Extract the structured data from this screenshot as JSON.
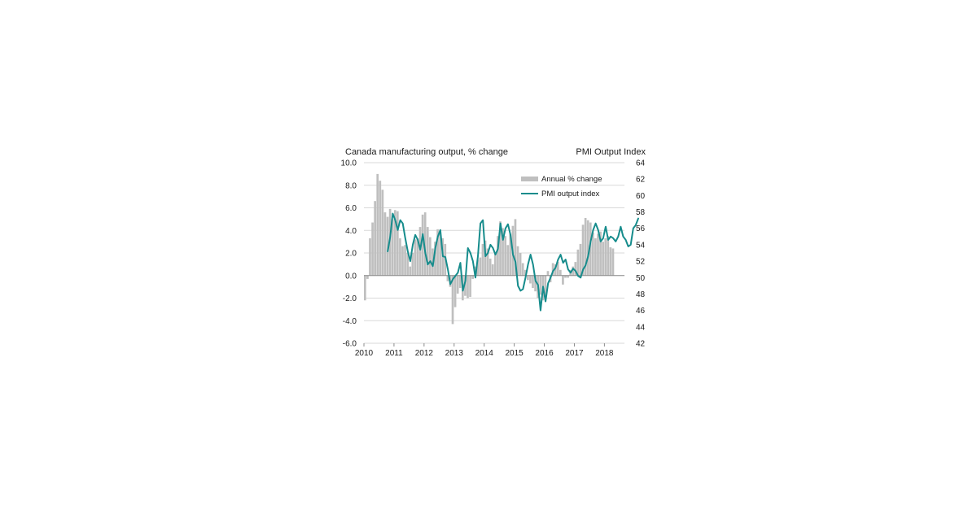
{
  "chart_data": {
    "type": "bar",
    "left_axis_title": "Canada manufacturing output, % change",
    "right_axis_title": "PMI Output Index",
    "left_ticks": [
      "10.0",
      "8.0",
      "6.0",
      "4.0",
      "2.0",
      "0.0",
      "-2.0",
      "-4.0",
      "-6.0"
    ],
    "right_ticks": [
      "64",
      "62",
      "60",
      "58",
      "56",
      "54",
      "52",
      "50",
      "48",
      "46",
      "44",
      "42"
    ],
    "x_ticks": [
      "2010",
      "2011",
      "2012",
      "2013",
      "2014",
      "2015",
      "2016",
      "2017",
      "2018"
    ],
    "ylim_left": [
      -6,
      10
    ],
    "ylim_right": [
      42,
      64
    ],
    "grid": true,
    "legend": {
      "placement": "top-right",
      "bar_label": "Annual % change",
      "line_label": "PMI output index"
    },
    "colors": {
      "bars": "#bfbfbf",
      "line": "#168c8c",
      "grid": "#d9d9d9"
    },
    "series": [
      {
        "name": "Annual % change",
        "kind": "bar",
        "start": "2010-01",
        "values": [
          -2.2,
          -0.3,
          3.3,
          4.7,
          6.6,
          9.0,
          8.4,
          7.6,
          5.6,
          5.2,
          5.9,
          5.0,
          5.8,
          5.7,
          3.3,
          2.6,
          2.7,
          2.0,
          0.8,
          2.0,
          3.2,
          3.3,
          4.3,
          5.4,
          5.6,
          4.3,
          3.4,
          2.4,
          3.0,
          4.1,
          3.9,
          3.3,
          2.8,
          -0.5,
          -1.0,
          -4.3,
          -2.8,
          -1.6,
          -1.1,
          -2.2,
          -1.8,
          -2.0,
          -1.9,
          -0.3,
          0.8,
          1.4,
          1.6,
          2.8,
          3.1,
          2.4,
          1.5,
          1.0,
          2.0,
          3.5,
          4.8,
          4.2,
          3.5,
          2.7,
          3.7,
          4.4,
          5.0,
          2.6,
          2.0,
          1.1,
          0.5,
          -0.4,
          -0.7,
          -1.1,
          -1.4,
          -2.0,
          -1.7,
          -2.2,
          -1.8,
          0.4,
          -0.6,
          1.1,
          1.0,
          1.2,
          0.5,
          -0.8,
          -0.2,
          -0.2,
          0.5,
          0.8,
          1.2,
          2.3,
          2.8,
          4.5,
          5.1,
          4.9,
          4.7,
          3.8,
          3.3,
          3.7,
          3.9,
          3.0,
          3.3,
          3.5,
          2.5,
          2.4
        ]
      },
      {
        "name": "PMI output index",
        "kind": "line",
        "start": "2010-10",
        "values": [
          53.2,
          55.0,
          57.8,
          57.0,
          55.8,
          57.0,
          56.6,
          54.8,
          53.2,
          52.0,
          54.0,
          55.2,
          54.6,
          53.4,
          55.3,
          53.0,
          51.6,
          52.0,
          51.4,
          53.6,
          55.0,
          55.8,
          52.6,
          52.5,
          51.0,
          49.2,
          49.8,
          50.2,
          50.6,
          51.8,
          48.4,
          49.6,
          53.6,
          53.0,
          52.0,
          50.0,
          52.6,
          56.6,
          57.0,
          52.6,
          53.0,
          54.0,
          53.6,
          52.8,
          53.5,
          56.6,
          54.6,
          56.0,
          56.5,
          55.2,
          52.8,
          51.9,
          49.0,
          48.4,
          48.6,
          50.0,
          51.6,
          52.8,
          51.6,
          49.6,
          49.1,
          46.0,
          48.9,
          47.1,
          49.3,
          50.0,
          50.8,
          51.2,
          52.2,
          52.8,
          51.8,
          52.2,
          51.0,
          50.6,
          51.1,
          50.8,
          50.2,
          50.0,
          51.0,
          51.5,
          52.6,
          54.4,
          55.8,
          56.6,
          55.8,
          54.4,
          54.8,
          56.2,
          54.6,
          55.0,
          54.8,
          54.4,
          55.0,
          56.2,
          55.0,
          54.6,
          53.8,
          54.0,
          56.0,
          56.4,
          57.2
        ]
      }
    ]
  }
}
